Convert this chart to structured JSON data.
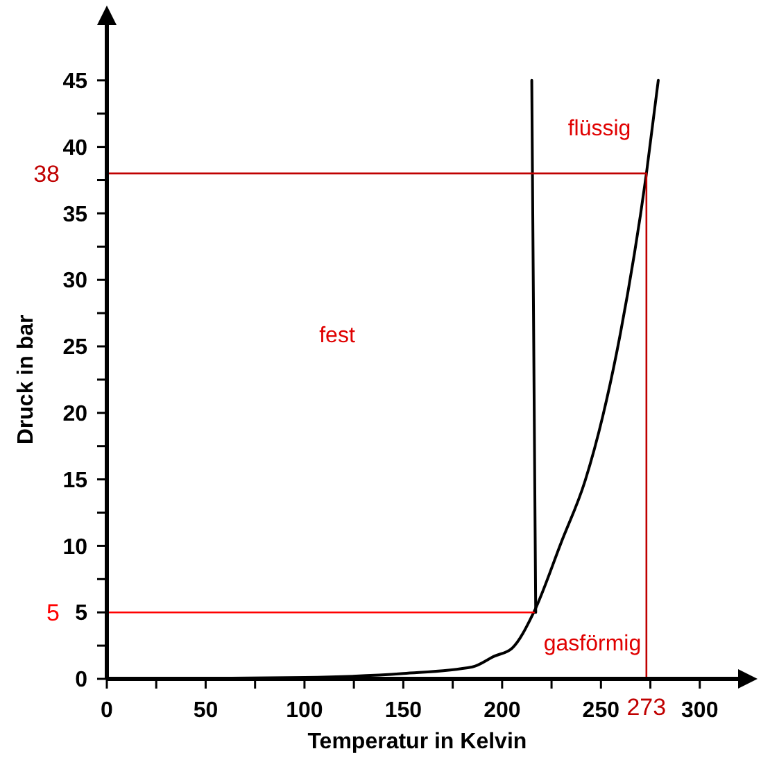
{
  "chart_data": {
    "type": "line",
    "xlabel": "Temperatur in Kelvin",
    "ylabel": "Druck in bar",
    "xlim": [
      0,
      325
    ],
    "ylim": [
      0,
      50
    ],
    "xticks": [
      0,
      {
        "value": 25,
        "label": null
      },
      50,
      {
        "value": 75,
        "label": null
      },
      100,
      {
        "value": 125,
        "label": null
      },
      150,
      {
        "value": 175,
        "label": null
      },
      200,
      {
        "value": 225,
        "label": null
      },
      250,
      {
        "value": 275,
        "label": null
      },
      300
    ],
    "yticks": [
      0,
      {
        "value": 2.5,
        "label": null
      },
      5,
      {
        "value": 7.5,
        "label": null
      },
      10,
      {
        "value": 12.5,
        "label": null
      },
      15,
      {
        "value": 17.5,
        "label": null
      },
      20,
      {
        "value": 22.5,
        "label": null
      },
      25,
      {
        "value": 27.5,
        "label": null
      },
      30,
      {
        "value": 32.5,
        "label": null
      },
      35,
      {
        "value": 37.5,
        "label": null
      },
      40,
      {
        "value": 42.5,
        "label": null
      },
      45
    ],
    "series": [
      {
        "color": "#000000",
        "x": [
          20,
          100,
          150,
          185,
          196,
          205,
          216,
          230,
          242,
          251,
          260,
          273,
          279
        ],
        "values": [
          0,
          0.1,
          0.4,
          0.9,
          1.7,
          2.3,
          5,
          10.3,
          14.9,
          19.8,
          26.1,
          38,
          45
        ]
      },
      {
        "color": "#000000",
        "x": [
          217,
          215
        ],
        "values": [
          5,
          45
        ]
      },
      {
        "name": "38",
        "color": "#c00000",
        "x": [
          0,
          273
        ],
        "values": [
          38,
          38
        ]
      },
      {
        "name": "273",
        "color": "#c00000",
        "x": [
          273,
          273
        ],
        "values": [
          0,
          38
        ]
      },
      {
        "name": "5",
        "color": "#ff0000",
        "x": [
          0,
          216
        ],
        "values": [
          5,
          5
        ]
      }
    ],
    "annotations": [
      "fest",
      "flüssig",
      "gasförmig"
    ]
  }
}
